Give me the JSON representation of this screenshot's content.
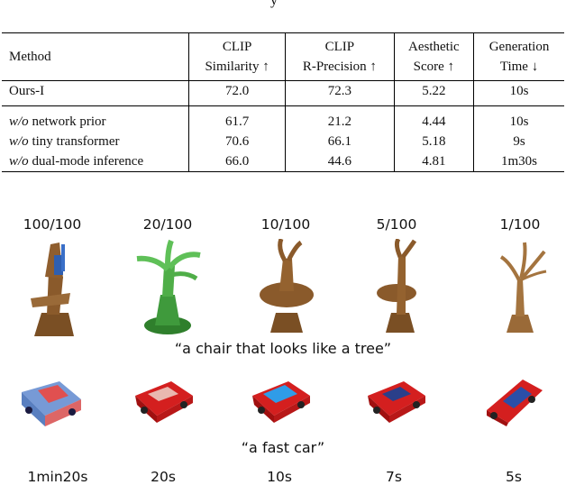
{
  "caption_fragment": "y",
  "table": {
    "headers": [
      [
        "Method"
      ],
      [
        "CLIP",
        "Similarity ↑"
      ],
      [
        "CLIP",
        "R-Precision ↑"
      ],
      [
        "Aesthetic",
        "Score ↑"
      ],
      [
        "Generation",
        "Time ↓"
      ]
    ],
    "main_row": {
      "method": "Ours-I",
      "values": [
        "72.0",
        "72.3",
        "5.22",
        "10s"
      ]
    },
    "ablations": [
      {
        "prefix": "w/o",
        "method": " network prior",
        "values": [
          "61.7",
          "21.2",
          "4.44",
          "10s"
        ]
      },
      {
        "prefix": "w/o",
        "method": " tiny transformer",
        "values": [
          "70.6",
          "66.1",
          "5.18",
          "9s"
        ]
      },
      {
        "prefix": "w/o",
        "method": " dual-mode inference",
        "values": [
          "66.0",
          "44.6",
          "4.81",
          "1m30s"
        ]
      }
    ]
  },
  "figure": {
    "step_labels": [
      "100/100",
      "20/100",
      "10/100",
      "5/100",
      "1/100"
    ],
    "prompt_chair": "“a chair that looks like a tree”",
    "prompt_car": "“a fast car”",
    "time_labels": [
      "1min20s",
      "20s",
      "10s",
      "7s",
      "5s"
    ],
    "colors": {
      "wood": "#8a5a2b",
      "green": "#3f9a3c",
      "car_red": "#d41f1f",
      "car_blue": "#2f78d8"
    }
  }
}
